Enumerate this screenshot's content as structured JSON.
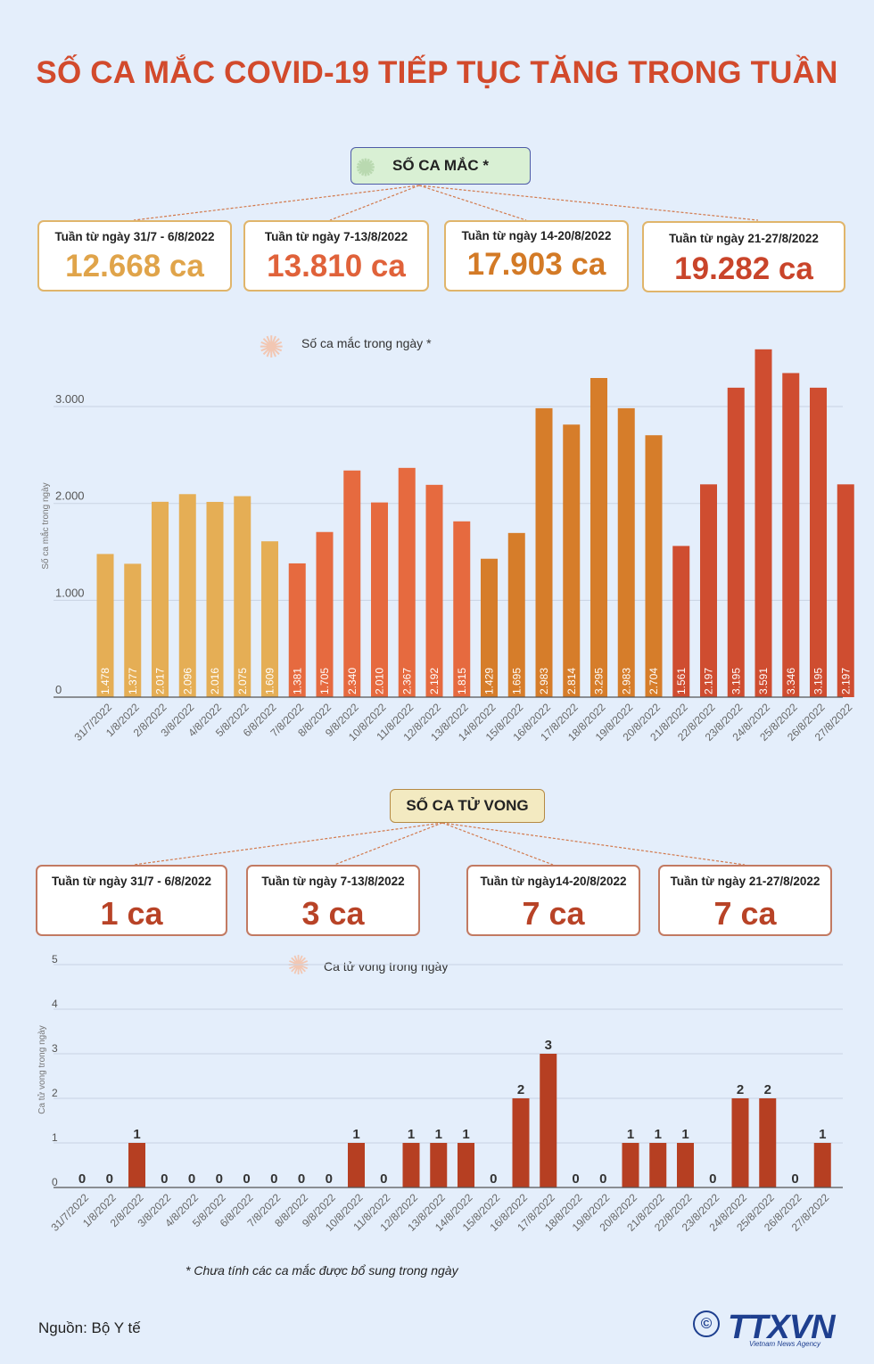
{
  "title": "SỐ CA MẮC COVID-19 TIẾP TỤC TĂNG TRONG TUẦN",
  "cases_section": {
    "heading": "SỐ CA MẮC *",
    "weeks": [
      {
        "label": "Tuần từ ngày 31/7 - 6/8/2022",
        "value": "12.668 ca",
        "color": "#e5a84c"
      },
      {
        "label": "Tuần từ ngày 7-13/8/2022",
        "value": "13.810 ca",
        "color": "#e5673d"
      },
      {
        "label": "Tuần từ ngày 14-20/8/2022",
        "value": "17.903 ca",
        "color": "#d8802c"
      },
      {
        "label": "Tuần từ ngày 21-27/8/2022",
        "value": "19.282 ca",
        "color": "#d24a2c"
      }
    ],
    "chart_note": "Số ca mắc trong ngày *"
  },
  "deaths_section": {
    "heading": "SỐ CA TỬ VONG",
    "weeks": [
      {
        "label": "Tuần từ ngày 31/7 - 6/8/2022",
        "value": "1 ca"
      },
      {
        "label": "Tuần từ ngày 7-13/8/2022",
        "value": "3 ca"
      },
      {
        "label": "Tuần từ ngày14-20/8/2022",
        "value": "7 ca"
      },
      {
        "label": "Tuần từ ngày 21-27/8/2022",
        "value": "7 ca"
      }
    ],
    "chart_note": "Ca tử vong trong ngày"
  },
  "chart_data": [
    {
      "type": "bar",
      "categories": [
        "31/7/2022",
        "1/8/2022",
        "2/8/2022",
        "3/8/2022",
        "4/8/2022",
        "5/8/2022",
        "6/8/2022",
        "7/8/2022",
        "8/8/2022",
        "9/8/2022",
        "10/8/2022",
        "11/8/2022",
        "12/8/2022",
        "13/8/2022",
        "14/8/2022",
        "15/8/2022",
        "16/8/2022",
        "17/8/2022",
        "18/8/2022",
        "19/8/2022",
        "20/8/2022",
        "21/8/2022",
        "22/8/2022",
        "23/8/2022",
        "24/8/2022",
        "25/8/2022",
        "26/8/2022",
        "27/8/2022"
      ],
      "values": [
        1478,
        1377,
        2017,
        2096,
        2016,
        2075,
        1609,
        1381,
        1705,
        2340,
        2010,
        2367,
        2192,
        1815,
        1429,
        1695,
        2983,
        2814,
        3295,
        2983,
        2704,
        1561,
        2197,
        3195,
        3591,
        3346,
        3195,
        2197
      ],
      "value_labels": [
        "1.478",
        "1.377",
        "2.017",
        "2.096",
        "2.016",
        "2.075",
        "1.609",
        "1.381",
        "1.705",
        "2.340",
        "2.010",
        "2.367",
        "2.192",
        "1.815",
        "1.429",
        "1.695",
        "2.983",
        "2.814",
        "3.295",
        "2.983",
        "2.704",
        "1.561",
        "2.197",
        "3.195",
        "3.591",
        "3.346",
        "3.195",
        "2.197"
      ],
      "week_colors": [
        "#e5ae55",
        "#e66a3f",
        "#d67d2a",
        "#cf4d30"
      ],
      "ylabel": "Số ca mắc trong ngày",
      "yticks": [
        "0",
        "1.000",
        "2.000",
        "3.000"
      ],
      "ylim": [
        0,
        3700
      ],
      "grid": true
    },
    {
      "type": "bar",
      "categories": [
        "31/7/2022",
        "1/8/2022",
        "2/8/2022",
        "3/8/2022",
        "4/8/2022",
        "5/8/2022",
        "6/8/2022",
        "7/8/2022",
        "8/8/2022",
        "9/8/2022",
        "10/8/2022",
        "11/8/2022",
        "12/8/2022",
        "13/8/2022",
        "14/8/2022",
        "15/8/2022",
        "16/8/2022",
        "17/8/2022",
        "18/8/2022",
        "19/8/2022",
        "20/8/2022",
        "21/8/2022",
        "22/8/2022",
        "23/8/2022",
        "24/8/2022",
        "25/8/2022",
        "26/8/2022",
        "27/8/2022"
      ],
      "values": [
        0,
        0,
        1,
        0,
        0,
        0,
        0,
        0,
        0,
        0,
        1,
        0,
        1,
        1,
        1,
        0,
        2,
        3,
        0,
        0,
        1,
        1,
        1,
        0,
        2,
        2,
        0,
        1
      ],
      "bar_color": "#b63f22",
      "ylabel": "Ca tử vong trong ngày",
      "yticks": [
        "0",
        "1",
        "2",
        "3",
        "4",
        "5"
      ],
      "ylim": [
        0,
        5
      ],
      "grid": true
    }
  ],
  "footnote": "* Chưa tính các ca mắc được bổ sung trong ngày",
  "source": "Nguồn: Bộ Y tế",
  "logo": {
    "mark": "TTXVN",
    "sub": "Vietnam News Agency",
    "copyright": "©"
  }
}
